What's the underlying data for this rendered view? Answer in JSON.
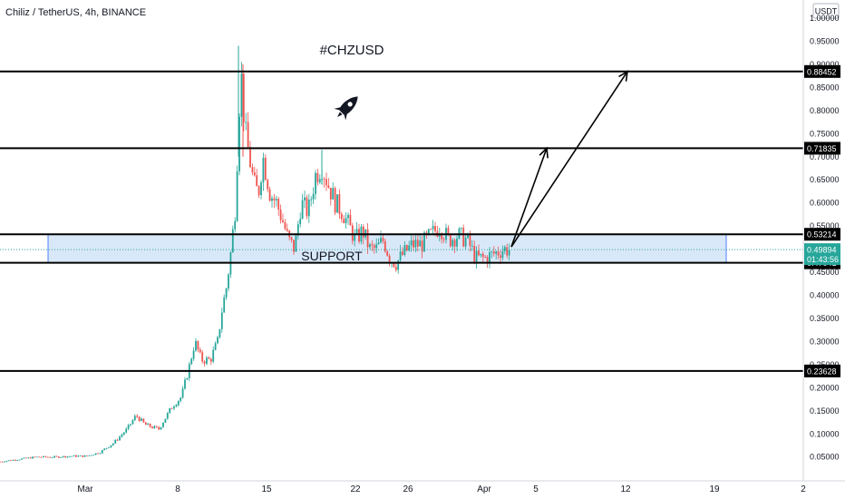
{
  "header": {
    "title": "Chiliz / TetherUS, 4h, BINANCE",
    "currency_badge": "USDT"
  },
  "annotations": {
    "hashtag": "#CHZUSD",
    "support_label": "SUPPORT",
    "icon": "rocket-icon"
  },
  "colors": {
    "up": "#26a69a",
    "down": "#ef5350",
    "zone_fill": "#cfe2f7",
    "zone_stroke": "#2962ff",
    "line": "#000000",
    "current": "#26a69a"
  },
  "chart_data": {
    "type": "candlestick",
    "title": "Chiliz / TetherUS, 4h, BINANCE",
    "ylim": [
      0.02,
      1.0
    ],
    "y_ticks": [
      "1.00000",
      "0.95000",
      "0.90000",
      "0.85000",
      "0.80000",
      "0.75000",
      "0.70000",
      "0.65000",
      "0.60000",
      "0.55000",
      "0.50000",
      "0.45000",
      "0.40000",
      "0.35000",
      "0.30000",
      "0.25000",
      "0.20000",
      "0.15000",
      "0.10000",
      "0.05000"
    ],
    "x_ticks": [
      "Mar",
      "8",
      "15",
      "22",
      "26",
      "Apr",
      "5",
      "12",
      "19",
      "2"
    ],
    "horizontal_levels": [
      {
        "label": "0.88452",
        "value": 0.88452
      },
      {
        "label": "0.71835",
        "value": 0.71835
      },
      {
        "label": "0.53214",
        "value": 0.53214
      },
      {
        "label": "0.47041",
        "value": 0.47041
      },
      {
        "label": "0.23628",
        "value": 0.23628
      }
    ],
    "current_price": {
      "value": 0.49894,
      "label": "0.49894",
      "countdown": "01:43:56"
    },
    "support_zone": {
      "low": 0.47041,
      "high": 0.53214
    },
    "price_path": [
      [
        0,
        0.04
      ],
      [
        20,
        0.045
      ],
      [
        40,
        0.05
      ],
      [
        60,
        0.05
      ],
      [
        80,
        0.052
      ],
      [
        95,
        0.052
      ],
      [
        110,
        0.06
      ],
      [
        125,
        0.08
      ],
      [
        140,
        0.11
      ],
      [
        150,
        0.14
      ],
      [
        160,
        0.12
      ],
      [
        175,
        0.11
      ],
      [
        190,
        0.16
      ],
      [
        200,
        0.18
      ],
      [
        208,
        0.24
      ],
      [
        215,
        0.3
      ],
      [
        222,
        0.26
      ],
      [
        232,
        0.26
      ],
      [
        240,
        0.3
      ],
      [
        245,
        0.37
      ],
      [
        250,
        0.42
      ],
      [
        255,
        0.5
      ],
      [
        260,
        0.6
      ],
      [
        263,
        0.78
      ],
      [
        266,
        0.88
      ],
      [
        270,
        0.76
      ],
      [
        275,
        0.7
      ],
      [
        280,
        0.64
      ],
      [
        285,
        0.62
      ],
      [
        290,
        0.7
      ],
      [
        298,
        0.62
      ],
      [
        305,
        0.6
      ],
      [
        312,
        0.56
      ],
      [
        318,
        0.52
      ],
      [
        325,
        0.5
      ],
      [
        332,
        0.6
      ],
      [
        340,
        0.58
      ],
      [
        348,
        0.66
      ],
      [
        355,
        0.68
      ],
      [
        362,
        0.64
      ],
      [
        370,
        0.6
      ],
      [
        378,
        0.58
      ],
      [
        385,
        0.55
      ],
      [
        392,
        0.52
      ],
      [
        400,
        0.54
      ],
      [
        408,
        0.5
      ],
      [
        415,
        0.5
      ],
      [
        423,
        0.52
      ],
      [
        430,
        0.48
      ],
      [
        437,
        0.47
      ],
      [
        445,
        0.49
      ],
      [
        455,
        0.51
      ],
      [
        465,
        0.51
      ],
      [
        475,
        0.53
      ],
      [
        485,
        0.55
      ],
      [
        495,
        0.52
      ],
      [
        505,
        0.53
      ],
      [
        515,
        0.52
      ],
      [
        525,
        0.48
      ],
      [
        535,
        0.48
      ],
      [
        545,
        0.49
      ],
      [
        555,
        0.5
      ],
      [
        562,
        0.499
      ]
    ]
  }
}
